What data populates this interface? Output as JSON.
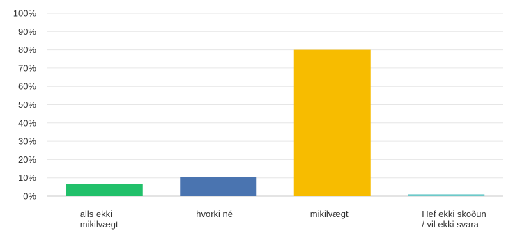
{
  "chart_data": {
    "type": "bar",
    "categories": [
      [
        "alls ekki",
        "mikilvægt"
      ],
      [
        "hvorki né"
      ],
      [
        "mikilvægt"
      ],
      [
        "Hef ekki skoðun",
        "/ vil ekki svara"
      ]
    ],
    "values": [
      6.5,
      10.5,
      80,
      1
    ],
    "colors": [
      "#21c06a",
      "#4a74b0",
      "#f7bc00",
      "#6cc9c9"
    ],
    "ylim": [
      0,
      100
    ],
    "yticks": [
      "0%",
      "10%",
      "20%",
      "30%",
      "40%",
      "50%",
      "60%",
      "70%",
      "80%",
      "90%",
      "100%"
    ],
    "grid": true,
    "title": "",
    "xlabel": "",
    "ylabel": ""
  }
}
